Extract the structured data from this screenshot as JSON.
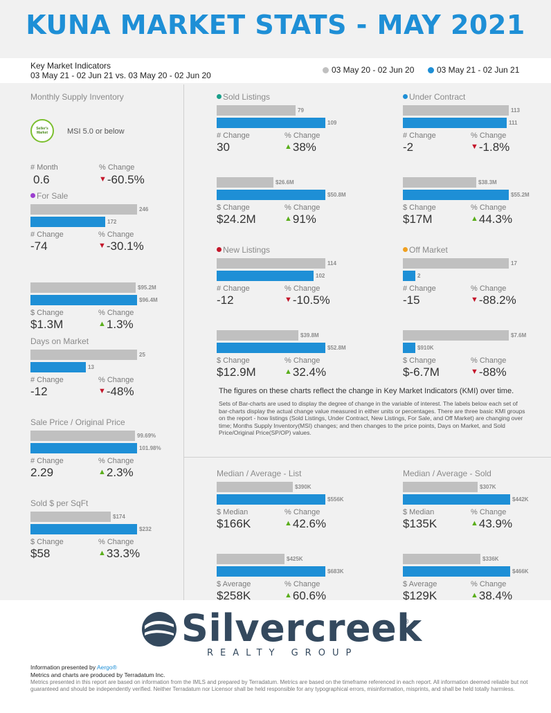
{
  "title": "KUNA MARKET STATS - MAY 2021",
  "header": {
    "kmi_title": "Key Market Indicators",
    "kmi_range": "03 May 21 - 02 Jun 21 vs. 03 May 20 - 02 Jun 20",
    "legend_prev": "03 May 20 - 02 Jun 20",
    "legend_cur": "03 May 21 - 02 Jun 21"
  },
  "colors": {
    "prev": "#c0c0c0",
    "cur": "#1e8fd6",
    "up": "#5aae1b",
    "down": "#c4162a",
    "title": "#1e8fd6"
  },
  "msi": {
    "title": "Monthly Supply Inventory",
    "badge": "Seller's Market",
    "badge_line1": "Seller's",
    "badge_line2": "Market",
    "threshold": "MSI 5.0 or below",
    "label_left": "# Month",
    "value_left": "0.6",
    "label_right": "% Change",
    "value_right": "-60.5%"
  },
  "for_sale": {
    "title": "For Sale",
    "dot_color": "#9b3fcf",
    "count": {
      "prev": 246,
      "cur": 172,
      "prev_label": "246",
      "cur_label": "172",
      "label_left": "# Change",
      "value_left": "-74",
      "label_right": "% Change",
      "value_right": "-30.1%"
    },
    "dollar": {
      "prev": 95.2,
      "cur": 96.4,
      "prev_label": "$95.2M",
      "cur_label": "$96.4M",
      "label_left": "$ Change",
      "value_left": "$1.3M",
      "label_right": "% Change",
      "value_right": "1.3%"
    }
  },
  "days_on_market": {
    "title": "Days on Market",
    "prev": 25,
    "cur": 13,
    "prev_label": "25",
    "cur_label": "13",
    "label_left": "# Change",
    "value_left": "-12",
    "label_right": "% Change",
    "value_right": "-48%"
  },
  "sale_price": {
    "title": "Sale Price / Original Price",
    "prev": 99.69,
    "cur": 101.98,
    "prev_label": "99.69%",
    "cur_label": "101.98%",
    "label_left": "# Change",
    "value_left": "2.29",
    "label_right": "% Change",
    "value_right": "2.3%"
  },
  "sold_per_sqft": {
    "title": "Sold $ per SqFt",
    "prev": 174,
    "cur": 232,
    "prev_label": "$174",
    "cur_label": "$232",
    "label_left": "$ Change",
    "value_left": "$58",
    "label_right": "% Change",
    "value_right": "33.3%"
  },
  "sold_listings": {
    "title": "Sold Listings",
    "dot_color": "#1a9f8a",
    "count": {
      "prev": 79,
      "cur": 109,
      "prev_label": "79",
      "cur_label": "109",
      "label_left": "# Change",
      "value_left": "30",
      "label_right": "% Change",
      "value_right": "38%"
    },
    "dollar": {
      "prev": 26.6,
      "cur": 50.8,
      "prev_label": "$26.6M",
      "cur_label": "$50.8M",
      "label_left": "$ Change",
      "value_left": "$24.2M",
      "label_right": "% Change",
      "value_right": "91%"
    }
  },
  "under_contract": {
    "title": "Under Contract",
    "dot_color": "#1e8fd6",
    "count": {
      "prev": 113,
      "cur": 111,
      "prev_label": "113",
      "cur_label": "111",
      "label_left": "# Change",
      "value_left": "-2",
      "label_right": "% Change",
      "value_right": "-1.8%"
    },
    "dollar": {
      "prev": 38.3,
      "cur": 55.2,
      "prev_label": "$38.3M",
      "cur_label": "$55.2M",
      "label_left": "$ Change",
      "value_left": "$17M",
      "label_right": "% Change",
      "value_right": "44.3%"
    }
  },
  "new_listings": {
    "title": "New Listings",
    "dot_color": "#c4162a",
    "count": {
      "prev": 114,
      "cur": 102,
      "prev_label": "114",
      "cur_label": "102",
      "label_left": "# Change",
      "value_left": "-12",
      "label_right": "% Change",
      "value_right": "-10.5%"
    },
    "dollar": {
      "prev": 39.8,
      "cur": 52.8,
      "prev_label": "$39.8M",
      "cur_label": "$52.8M",
      "label_left": "$ Change",
      "value_left": "$12.9M",
      "label_right": "% Change",
      "value_right": "32.4%"
    }
  },
  "off_market": {
    "title": "Off Market",
    "dot_color": "#f0a020",
    "count": {
      "prev": 17,
      "cur": 2,
      "prev_label": "17",
      "cur_label": "2",
      "label_left": "# Change",
      "value_left": "-15",
      "label_right": "% Change",
      "value_right": "-88.2%"
    },
    "dollar": {
      "prev": 7.6,
      "cur": 0.91,
      "prev_label": "$7.6M",
      "cur_label": "$910K",
      "label_left": "$ Change",
      "value_left": "$-6.7M",
      "label_right": "% Change",
      "value_right": "-88%"
    }
  },
  "note": {
    "lead": "The figures on these charts reflect the change in Key Market Indicators (KMI) over time.",
    "body": "Sets of Bar-charts are used to display the degree of change in the variable of interest. The labels below each set of bar-charts display the actual change value measured in either units or percentages. There are three basic KMI groups on the report - how listings (Sold Listings, Under Contract, New Listings, For Sale, and Off Market) are changing over time; Months Supply Inventory(MSI) changes; and then changes to the price points, Days on Market, and Sold Price/Original Price(SP/OP) values."
  },
  "median_list": {
    "title": "Median / Average - List",
    "median": {
      "prev": 390,
      "cur": 556,
      "prev_label": "$390K",
      "cur_label": "$556K",
      "label_left": "$ Median",
      "value_left": "$166K",
      "label_right": "% Change",
      "value_right": "42.6%"
    },
    "average": {
      "prev": 425,
      "cur": 683,
      "prev_label": "$425K",
      "cur_label": "$683K",
      "label_left": "$ Average",
      "value_left": "$258K",
      "label_right": "% Change",
      "value_right": "60.6%"
    }
  },
  "median_sold": {
    "title": "Median / Average - Sold",
    "median": {
      "prev": 307,
      "cur": 442,
      "prev_label": "$307K",
      "cur_label": "$442K",
      "label_left": "$ Median",
      "value_left": "$135K",
      "label_right": "% Change",
      "value_right": "43.9%"
    },
    "average": {
      "prev": 336,
      "cur": 466,
      "prev_label": "$336K",
      "cur_label": "$466K",
      "label_left": "$ Average",
      "value_left": "$129K",
      "label_right": "% Change",
      "value_right": "38.4%"
    }
  },
  "footer": {
    "logo_name": "Silvercreek",
    "logo_registered": "®",
    "logo_sub": "REALTY GROUP",
    "presented_prefix": "Information presented by",
    "presented_link": "Aergo®",
    "produced": "Metrics and charts are produced by Terradatum Inc.",
    "disclaimer": "Metrics presented in this report are based on information from the IMLS and prepared by Terradatum. Metrics are based on the timeframe referenced in each report. All information deemed reliable but not guaranteed and should be independently verified. Neither Terradatum nor Licensor shall be held responsible for any typographical errors, misinformation, misprints, and shall be held totally harmless."
  }
}
